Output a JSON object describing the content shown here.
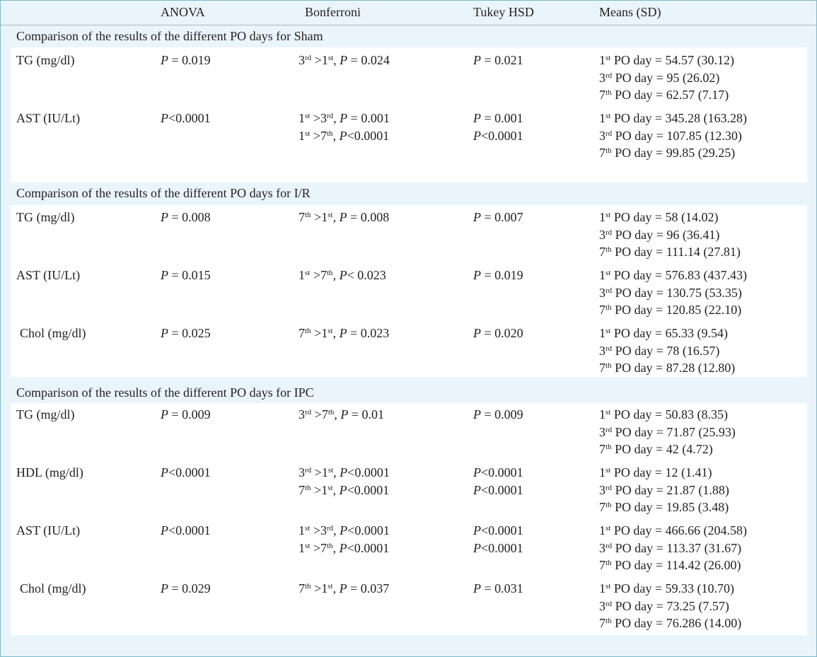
{
  "header": {
    "col1": "",
    "anova": "ANOVA",
    "bonferroni": "Bonferroni",
    "tukey": "Tukey HSD",
    "means": "Means (SD)"
  },
  "sections": [
    {
      "title": "Comparison of the results of the different PO days for Sham",
      "rows": [
        {
          "variable": "TG (mg/dl)",
          "anova": "P = 0.019",
          "bonferroni": [
            "3rd >1st, P = 0.024"
          ],
          "tukey": [
            "P = 0.021"
          ],
          "means": [
            "1st PO day = 54.57 (30.12)",
            "3rd PO day = 95 (26.02)",
            "7th PO day = 62.57 (7.17)"
          ]
        },
        {
          "variable": "AST (IU/Lt)",
          "anova": "P<0.0001",
          "bonferroni": [
            "1st >3rd, P = 0.001",
            "1st >7th, P<0.0001"
          ],
          "tukey": [
            "P = 0.001",
            "P<0.0001"
          ],
          "means": [
            "1st PO day = 345.28 (163.28)",
            "3rd PO day = 107.85 (12.30)",
            "7th PO day = 99.85 (29.25)"
          ]
        }
      ]
    },
    {
      "title": "Comparison of the results of the different PO days for I/R",
      "rows": [
        {
          "variable": "TG (mg/dl)",
          "anova": "P = 0.008",
          "bonferroni": [
            "7th >1st, P = 0.008"
          ],
          "tukey": [
            "P = 0.007"
          ],
          "means": [
            "1st PO day = 58 (14.02)",
            "3rd PO day = 96 (36.41)",
            "7th PO day = 111.14 (27.81)"
          ]
        },
        {
          "variable": "AST (IU/Lt)",
          "anova": "P = 0.015",
          "bonferroni": [
            "1st >7th, P< 0.023"
          ],
          "tukey": [
            "P = 0.019"
          ],
          "means": [
            "1st PO day = 576.83 (437.43)",
            "3rd PO day = 130.75 (53.35)",
            "7th PO day = 120.85 (22.10)"
          ]
        },
        {
          "variable": "Chol (mg/dl)",
          "anova": "P = 0.025",
          "bonferroni": [
            "7th >1st, P = 0.023"
          ],
          "tukey": [
            "P = 0.020"
          ],
          "means": [
            "1st PO day = 65.33 (9.54)",
            "3rd PO day = 78 (16.57)",
            "7th PO day = 87.28 (12.80)"
          ]
        }
      ]
    },
    {
      "title": "Comparison of the results of the different PO days for IPC",
      "rows": [
        {
          "variable": "TG (mg/dl)",
          "anova": "P = 0.009",
          "bonferroni": [
            "3rd >7th, P = 0.01"
          ],
          "tukey": [
            "P = 0.009"
          ],
          "means": [
            "1st PO day = 50.83 (8.35)",
            "3rd PO day = 71.87 (25.93)",
            "7th PO day = 42 (4.72)"
          ]
        },
        {
          "variable": "HDL (mg/dl)",
          "anova": "P<0.0001",
          "bonferroni": [
            "3rd >1st, P<0.0001",
            "7th >1st, P<0.0001"
          ],
          "tukey": [
            "P<0.0001",
            "P<0.0001"
          ],
          "means": [
            "1st PO day = 12 (1.41)",
            "3rd PO day = 21.87 (1.88)",
            "7th PO day = 19.85 (3.48)"
          ]
        },
        {
          "variable": "AST (IU/Lt)",
          "anova": "P<0.0001",
          "bonferroni": [
            "1st >3rd, P<0.0001",
            "1st >7th, P<0.0001"
          ],
          "tukey": [
            "P<0.0001",
            "P<0.0001"
          ],
          "means": [
            "1st PO day = 466.66 (204.58)",
            "3rd PO day = 113.37 (31.67)",
            "7th PO day = 114.42 (26.00)"
          ]
        },
        {
          "variable": "Chol (mg/dl)",
          "anova": "P = 0.029",
          "bonferroni": [
            "7th >1st, P = 0.037"
          ],
          "tukey": [
            "P = 0.031"
          ],
          "means": [
            "1st PO day = 59.33 (10.70)",
            "3rd PO day = 73.25 (7.57)",
            "7th PO day = 76.286 (14.00)"
          ]
        }
      ]
    }
  ]
}
